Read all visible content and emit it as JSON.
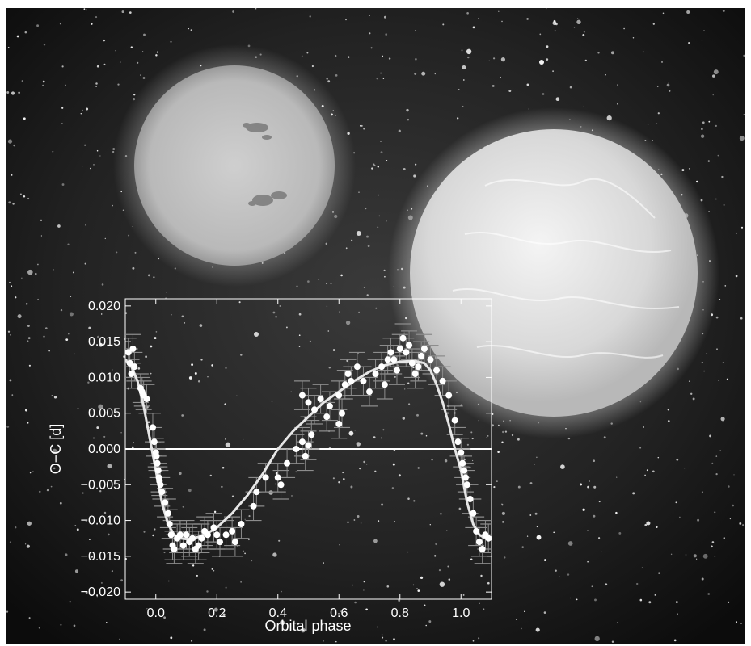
{
  "chart_data": {
    "type": "scatter",
    "title": "",
    "xlabel": "Orbital phase",
    "ylabel": "O−C [d]",
    "xlim": [
      -0.1,
      1.1
    ],
    "ylim": [
      -0.021,
      0.021
    ],
    "grid": false,
    "zero_line": 0.0,
    "x_ticks": [
      0.0,
      0.2,
      0.4,
      0.6,
      0.8,
      1.0
    ],
    "x_tick_labels": [
      "0.0",
      "0.2",
      "0.4",
      "0.6",
      "0.8",
      "1.0"
    ],
    "y_ticks": [
      0.02,
      0.015,
      0.01,
      0.005,
      0.0,
      -0.005,
      -0.01,
      -0.015,
      -0.02
    ],
    "y_tick_labels": [
      "0.020",
      "0.015",
      "0.010",
      "0.005",
      "0.000",
      "−0.005",
      "−0.010",
      "−0.015",
      "−0.020"
    ],
    "series": [
      {
        "kind": "points_with_errorbars",
        "yerr": 0.002,
        "points": [
          [
            -0.09,
            0.0135
          ],
          [
            -0.085,
            0.012
          ],
          [
            -0.08,
            0.0105
          ],
          [
            -0.075,
            0.014
          ],
          [
            -0.07,
            0.0115
          ],
          [
            -0.05,
            0.0085
          ],
          [
            -0.045,
            0.008
          ],
          [
            -0.04,
            0.0075
          ],
          [
            -0.03,
            0.007
          ],
          [
            -0.01,
            0.003
          ],
          [
            -0.005,
            0.001
          ],
          [
            0.0,
            -0.0005
          ],
          [
            0.002,
            -0.001
          ],
          [
            0.005,
            -0.002
          ],
          [
            0.008,
            -0.003
          ],
          [
            0.01,
            -0.004
          ],
          [
            0.012,
            -0.0045
          ],
          [
            0.015,
            -0.005
          ],
          [
            0.02,
            -0.006
          ],
          [
            0.03,
            -0.0075
          ],
          [
            0.04,
            -0.009
          ],
          [
            0.045,
            -0.0105
          ],
          [
            0.05,
            -0.012
          ],
          [
            0.055,
            -0.0135
          ],
          [
            0.06,
            -0.014
          ],
          [
            0.07,
            -0.0125
          ],
          [
            0.08,
            -0.012
          ],
          [
            0.09,
            -0.0135
          ],
          [
            0.1,
            -0.012
          ],
          [
            0.11,
            -0.013
          ],
          [
            0.12,
            -0.0125
          ],
          [
            0.13,
            -0.014
          ],
          [
            0.14,
            -0.0135
          ],
          [
            0.15,
            -0.0125
          ],
          [
            0.16,
            -0.0115
          ],
          [
            0.17,
            -0.012
          ],
          [
            0.19,
            -0.011
          ],
          [
            0.2,
            -0.012
          ],
          [
            0.21,
            -0.013
          ],
          [
            0.23,
            -0.012
          ],
          [
            0.25,
            -0.0115
          ],
          [
            0.26,
            -0.013
          ],
          [
            0.28,
            -0.0105
          ],
          [
            0.32,
            -0.008
          ],
          [
            0.33,
            -0.006
          ],
          [
            0.36,
            -0.004
          ],
          [
            0.4,
            -0.004
          ],
          [
            0.41,
            -0.005
          ],
          [
            0.43,
            -0.002
          ],
          [
            0.46,
            0.0
          ],
          [
            0.48,
            0.001
          ],
          [
            0.49,
            -0.001
          ],
          [
            0.5,
            0.0005
          ],
          [
            0.51,
            0.002
          ],
          [
            0.48,
            0.0075
          ],
          [
            0.5,
            0.0065
          ],
          [
            0.52,
            0.0055
          ],
          [
            0.54,
            0.007
          ],
          [
            0.56,
            0.0045
          ],
          [
            0.57,
            0.006
          ],
          [
            0.6,
            0.0075
          ],
          [
            0.62,
            0.009
          ],
          [
            0.63,
            0.0105
          ],
          [
            0.6,
            0.0035
          ],
          [
            0.61,
            0.005
          ],
          [
            0.64,
            0.0095
          ],
          [
            0.66,
            0.0115
          ],
          [
            0.68,
            0.0095
          ],
          [
            0.7,
            0.008
          ],
          [
            0.72,
            0.0105
          ],
          [
            0.74,
            0.0115
          ],
          [
            0.75,
            0.009
          ],
          [
            0.76,
            0.0125
          ],
          [
            0.77,
            0.0135
          ],
          [
            0.78,
            0.0125
          ],
          [
            0.79,
            0.011
          ],
          [
            0.8,
            0.014
          ],
          [
            0.81,
            0.0155
          ],
          [
            0.82,
            0.0135
          ],
          [
            0.83,
            0.0145
          ],
          [
            0.84,
            0.012
          ],
          [
            0.85,
            0.0105
          ],
          [
            0.86,
            0.0115
          ],
          [
            0.87,
            0.013
          ],
          [
            0.88,
            0.014
          ],
          [
            0.9,
            0.0125
          ],
          [
            0.92,
            0.011
          ],
          [
            0.94,
            0.0095
          ],
          [
            0.96,
            0.0075
          ],
          [
            0.98,
            0.004
          ],
          [
            0.99,
            0.001
          ],
          [
            1.0,
            -0.0005
          ],
          [
            1.005,
            -0.002
          ],
          [
            1.01,
            -0.003
          ],
          [
            1.015,
            -0.004
          ],
          [
            1.02,
            -0.005
          ],
          [
            1.03,
            -0.007
          ],
          [
            1.04,
            -0.009
          ],
          [
            1.05,
            -0.0115
          ],
          [
            1.06,
            -0.013
          ],
          [
            1.07,
            -0.014
          ],
          [
            1.08,
            -0.012
          ],
          [
            1.09,
            -0.0125
          ]
        ]
      },
      {
        "kind": "model_curve",
        "points": [
          [
            -0.1,
            0.0125
          ],
          [
            -0.08,
            0.0115
          ],
          [
            -0.06,
            0.0095
          ],
          [
            -0.04,
            0.006
          ],
          [
            -0.02,
            0.0015
          ],
          [
            0.0,
            -0.003
          ],
          [
            0.02,
            -0.0075
          ],
          [
            0.04,
            -0.0105
          ],
          [
            0.06,
            -0.012
          ],
          [
            0.08,
            -0.0125
          ],
          [
            0.1,
            -0.0126
          ],
          [
            0.12,
            -0.0125
          ],
          [
            0.14,
            -0.0123
          ],
          [
            0.16,
            -0.012
          ],
          [
            0.18,
            -0.0115
          ],
          [
            0.2,
            -0.011
          ],
          [
            0.22,
            -0.0102
          ],
          [
            0.25,
            -0.009
          ],
          [
            0.3,
            -0.0065
          ],
          [
            0.35,
            -0.0035
          ],
          [
            0.4,
            0.0
          ],
          [
            0.45,
            0.0025
          ],
          [
            0.5,
            0.0045
          ],
          [
            0.55,
            0.0065
          ],
          [
            0.6,
            0.008
          ],
          [
            0.65,
            0.0095
          ],
          [
            0.7,
            0.0108
          ],
          [
            0.75,
            0.0117
          ],
          [
            0.8,
            0.0122
          ],
          [
            0.85,
            0.0123
          ],
          [
            0.88,
            0.012
          ],
          [
            0.9,
            0.011
          ],
          [
            0.92,
            0.009
          ],
          [
            0.94,
            0.0065
          ],
          [
            0.96,
            0.0035
          ],
          [
            0.98,
            0.0
          ],
          [
            1.0,
            -0.003
          ],
          [
            1.02,
            -0.0075
          ],
          [
            1.04,
            -0.0105
          ],
          [
            1.06,
            -0.012
          ],
          [
            1.08,
            -0.0125
          ],
          [
            1.1,
            -0.0126
          ]
        ]
      }
    ]
  },
  "scene": {
    "background_color": "#111111",
    "text_color": "#ffffff",
    "point_color": "#ffffff",
    "errorbar_color": "#8c8c8c",
    "curve_color": "#e6e6e6",
    "illustration": [
      "background-starfield",
      "spotted-star-left",
      "large-star-right"
    ]
  }
}
